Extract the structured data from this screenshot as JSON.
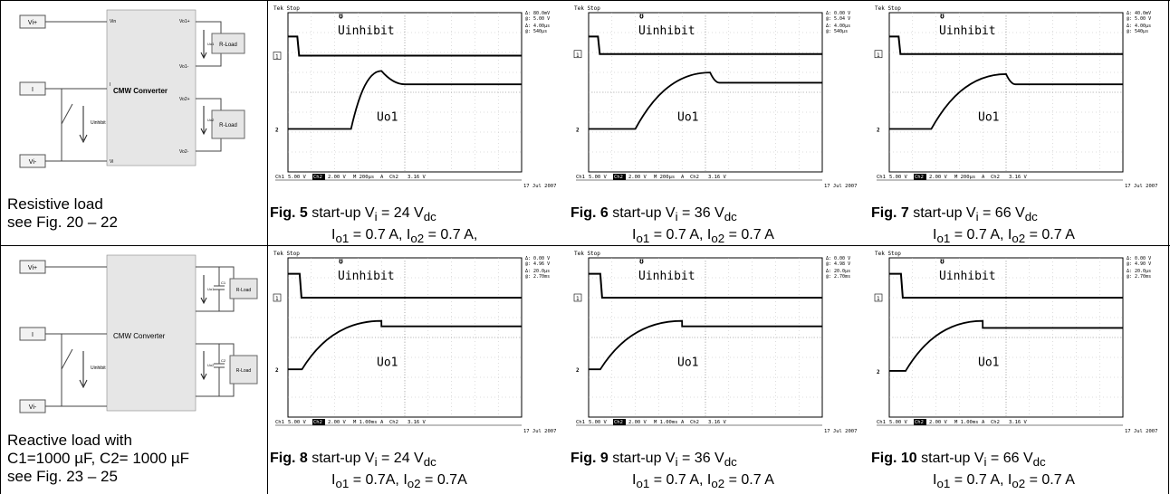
{
  "row1": {
    "schematic": {
      "vi_plus": "Vi+",
      "vi_minus": "Vi-",
      "inhibit_box": "I",
      "converter": "CMW Converter",
      "rload": "R-Load",
      "uinhibit": "Uinhibit",
      "pin_vin": "Vin",
      "pin_vo1p": "Vo1+",
      "pin_vo1m": "Vo1-",
      "pin_vo2p": "Vo2+",
      "pin_vo2m": "Vo2-",
      "pin_vi": "Vi",
      "pin_i": "I",
      "uo1": "Uo1",
      "uo2": "Uo2"
    },
    "caption_line1": "Resistive load",
    "caption_line2": "see Fig. 20 – 22",
    "figs": [
      {
        "num": "Fig. 5",
        "text": "start-up V",
        "sub": "i",
        "rest": " = 24 V",
        "sub2": "dc",
        "l2": "I",
        "l2s": "o1",
        "l2r": " = 0.7 A,  I",
        "l2s2": "o2",
        "l2r2": " = 0.7 A,",
        "meas": [
          "Δ: 80.0mV",
          "@: 5.00 V",
          "Δ: 4.00µs",
          "@: 540µs"
        ],
        "status": [
          "Ch1",
          "5.00 V",
          "Ch2",
          "2.00 V",
          "M 200µs",
          "A",
          "Ch2",
          "3.16 V"
        ],
        "date": "17 Jul 2007"
      },
      {
        "num": "Fig. 6",
        "text": "start-up V",
        "sub": "i",
        "rest": " = 36 V",
        "sub2": "dc",
        "l2": "I",
        "l2s": "o1",
        "l2r": " = 0.7 A,  I",
        "l2s2": "o2",
        "l2r2": " = 0.7 A",
        "meas": [
          "Δ: 0.00 V",
          "@: 5.04 V",
          "Δ: 4.00µs",
          "@: 540µs"
        ],
        "status": [
          "Ch1",
          "5.00 V",
          "Ch2",
          "2.00 V",
          "M 200µs",
          "A",
          "Ch2",
          "3.16 V"
        ],
        "date": "17 Jul 2007"
      },
      {
        "num": "Fig. 7",
        "text": "start-up V",
        "sub": "i",
        "rest": " = 66 V",
        "sub2": "dc",
        "l2": "I",
        "l2s": "o1",
        "l2r": " = 0.7 A,  I",
        "l2s2": "o2",
        "l2r2": " = 0.7 A",
        "meas": [
          "Δ: 40.0mV",
          "@: 5.00 V",
          "Δ: 4.00µs",
          "@: 540µs"
        ],
        "status": [
          "Ch1",
          "5.00 V",
          "Ch2",
          "2.00 V",
          "M 200µs",
          "A",
          "Ch2",
          "3.16 V"
        ],
        "date": "17 Jul 2007"
      }
    ]
  },
  "row2": {
    "schematic": {
      "vi_plus": "Vi+",
      "vi_minus": "Vi-",
      "inhibit_box": "I",
      "converter": "CMW Converter",
      "rload": "R-Load",
      "uinhibit": "Uinhibit",
      "c1": "C1",
      "c2": "C2",
      "uo1": "Uo1",
      "uo2": "Uo2"
    },
    "caption_line1": "Reactive load with",
    "caption_line2": "C1=1000 µF, C2= 1000 µF",
    "caption_line3": "see Fig. 23 – 25",
    "figs": [
      {
        "num": "Fig. 8",
        "text": "start-up V",
        "sub": "i",
        "rest": " = 24 V",
        "sub2": "dc",
        "l2": "I",
        "l2s": "o1",
        "l2r": " = 0.7A, I",
        "l2s2": "o2",
        "l2r2": " = 0.7A",
        "meas": [
          "Δ: 0.00 V",
          "@: 4.96 V",
          "Δ: 20.0µs",
          "@: 2.70ms"
        ],
        "status": [
          "Ch1",
          "5.00 V",
          "Ch2",
          "2.00 V",
          "M 1.00ms",
          "A",
          "Ch2",
          "3.16 V"
        ],
        "date": "17 Jul 2007"
      },
      {
        "num": "Fig. 9",
        "text": "start-up V",
        "sub": "i",
        "rest": " = 36 V",
        "sub2": "dc",
        "l2": "I",
        "l2s": "o1",
        "l2r": " = 0.7 A, I",
        "l2s2": "o2",
        "l2r2": " = 0.7 A",
        "meas": [
          "Δ: 0.00 V",
          "@: 4.98 V",
          "Δ: 20.0µs",
          "@: 2.70ms"
        ],
        "status": [
          "Ch1",
          "5.00 V",
          "Ch2",
          "2.00 V",
          "M 1.00ms",
          "A",
          "Ch2",
          "3.16 V"
        ],
        "date": "17 Jul 2007"
      },
      {
        "num": "Fig. 10",
        "text": "start-up V",
        "sub": "i",
        "rest": " = 66 V",
        "sub2": "dc",
        "l2": "I",
        "l2s": "o1",
        "l2r": " = 0.7 A,  I",
        "l2s2": "o2",
        "l2r2": " = 0.7 A",
        "meas": [
          "Δ: 0.00 V",
          "@: 4.90 V",
          "Δ: 20.0µs",
          "@: 2.70ms"
        ],
        "status": [
          "Ch1",
          "5.00 V",
          "Ch2",
          "2.00 V",
          "M 1.00ms",
          "A",
          "Ch2",
          "3.16 V"
        ],
        "date": "17 Jul 2007"
      }
    ]
  },
  "scope_common": {
    "header": "Tek Stop",
    "uinhibit": "Uinhibit",
    "uo1": "Uo1",
    "marker1": "1",
    "marker2": "2"
  }
}
